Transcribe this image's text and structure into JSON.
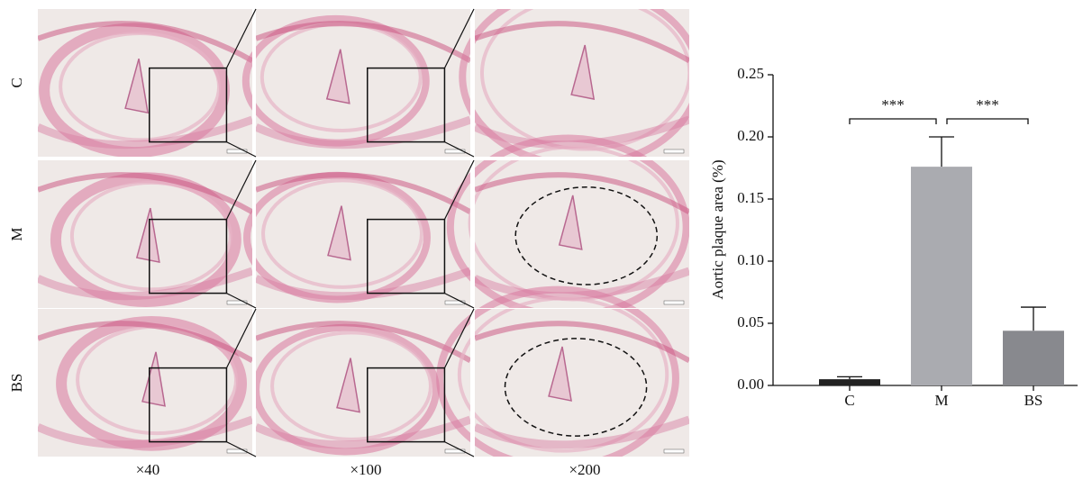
{
  "micrographs": {
    "row_labels": [
      "C",
      "M",
      "BS"
    ],
    "column_labels": [
      "×40",
      "×100",
      "×200"
    ]
  },
  "chart_data": {
    "type": "bar",
    "y_label": "Aortic plaque area (%)",
    "categories": [
      "C",
      "M",
      "BS"
    ],
    "values": [
      0.005,
      0.176,
      0.044
    ],
    "errors": [
      0.002,
      0.024,
      0.019
    ],
    "colors": [
      "#222222",
      "#aaabb0",
      "#88898e"
    ],
    "ylim": [
      0,
      0.25
    ],
    "yticks": [
      {
        "value": 0,
        "label": "0.00"
      },
      {
        "value": 0.05,
        "label": "0.05"
      },
      {
        "value": 0.1,
        "label": "0.10"
      },
      {
        "value": 0.15,
        "label": "0.15"
      },
      {
        "value": 0.2,
        "label": "0.20"
      },
      {
        "value": 0.25,
        "label": "0.25"
      }
    ],
    "annotations": [
      {
        "text": "***",
        "between": [
          "C",
          "M"
        ]
      },
      {
        "text": "***",
        "between": [
          "M",
          "BS"
        ]
      }
    ]
  }
}
